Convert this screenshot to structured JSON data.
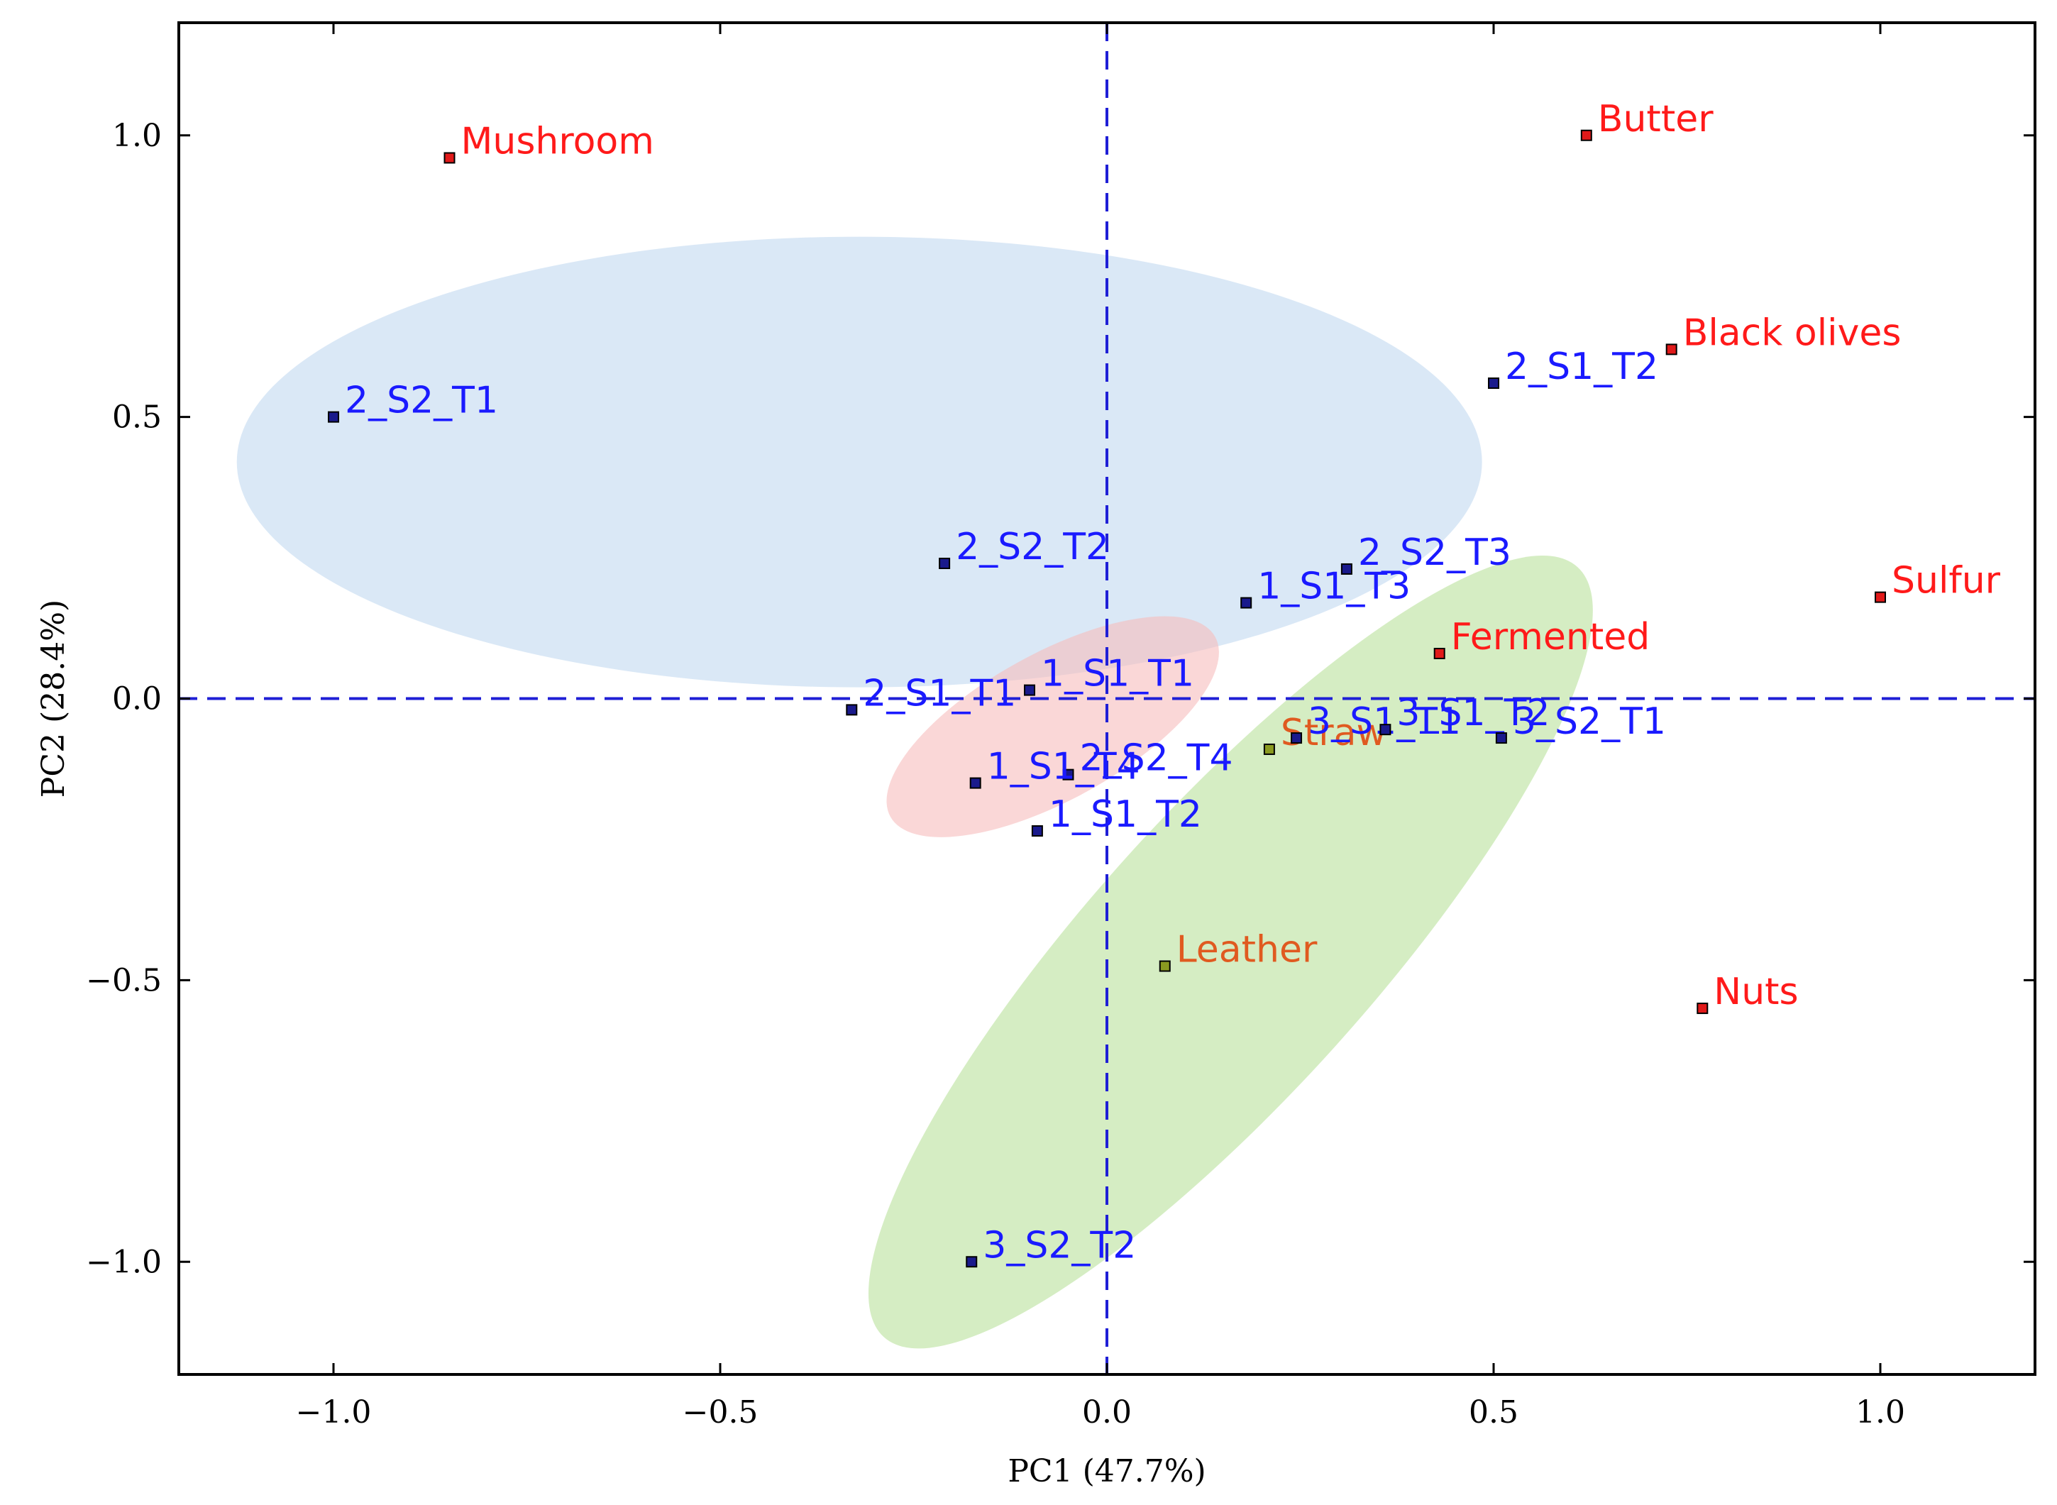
{
  "chart_data": {
    "type": "scatter",
    "title": "",
    "xlabel": "PC1 (47.7%)",
    "ylabel": "PC2 (28.4%)",
    "xlim": [
      -1.2,
      1.2
    ],
    "ylim": [
      -1.2,
      1.2
    ],
    "xticks": [
      -1.0,
      -0.5,
      0.0,
      0.5,
      1.0
    ],
    "yticks": [
      -1.0,
      -0.5,
      0.0,
      0.5,
      1.0
    ],
    "xtick_labels": [
      "−1.0",
      "−0.5",
      "0.0",
      "0.5",
      "1.0"
    ],
    "ytick_labels": [
      "−1.0",
      "−0.5",
      "0.0",
      "0.5",
      "1.0"
    ],
    "grid": false,
    "reference_lines": {
      "x": 0,
      "y": 0,
      "style": "dashed",
      "color": "#1f1fd6"
    },
    "ellipses": [
      {
        "name": "blue-group",
        "cx": -0.32,
        "cy": 0.42,
        "rx": 0.805,
        "ry": 0.4,
        "angle_deg": 0,
        "color": "#bcd6ee",
        "opacity": 0.55
      },
      {
        "name": "red-group",
        "cx": -0.07,
        "cy": -0.05,
        "rx": 0.24,
        "ry": 0.13,
        "angle_deg": 29,
        "color": "#f7bcbc",
        "opacity": 0.6
      },
      {
        "name": "green-group",
        "cx": 0.16,
        "cy": -0.45,
        "rx": 0.67,
        "ry": 0.25,
        "angle_deg": 48,
        "color": "#bfe3a3",
        "opacity": 0.65
      }
    ],
    "series": [
      {
        "name": "attributes",
        "text_color": "#ff1a1a",
        "marker_color": "#e11a1a",
        "points": [
          {
            "label": "Mushroom",
            "x": -0.85,
            "y": 0.96
          },
          {
            "label": "Butter",
            "x": 0.62,
            "y": 1.0
          },
          {
            "label": "Black olives",
            "x": 0.73,
            "y": 0.62
          },
          {
            "label": "Sulfur",
            "x": 1.0,
            "y": 0.18
          },
          {
            "label": "Fermented",
            "x": 0.43,
            "y": 0.08
          },
          {
            "label": "Nuts",
            "x": 0.77,
            "y": -0.55
          }
        ]
      },
      {
        "name": "attributes-in-group",
        "text_color": "#e05a20",
        "marker_color": "#8a9a20",
        "points": [
          {
            "label": "Straw",
            "x": 0.21,
            "y": -0.09
          },
          {
            "label": "Leather",
            "x": 0.075,
            "y": -0.475
          }
        ]
      },
      {
        "name": "samples",
        "text_color": "#1a1aff",
        "marker_color": "#1a1a8c",
        "points": [
          {
            "label": "2_S2_T1",
            "x": -1.0,
            "y": 0.5
          },
          {
            "label": "2_S1_T2",
            "x": 0.5,
            "y": 0.56
          },
          {
            "label": "2_S2_T2",
            "x": -0.21,
            "y": 0.24
          },
          {
            "label": "2_S2_T3",
            "x": 0.31,
            "y": 0.23
          },
          {
            "label": "1_S1_T3",
            "x": 0.18,
            "y": 0.17
          },
          {
            "label": "2_S1_T1",
            "x": -0.33,
            "y": -0.02
          },
          {
            "label": "1_S1_T1",
            "x": -0.1,
            "y": 0.015
          },
          {
            "label": "3_S1_T1",
            "x": 0.245,
            "y": -0.07
          },
          {
            "label": "3_S1_T2",
            "x": 0.36,
            "y": -0.055
          },
          {
            "label": "3_S2_T1",
            "x": 0.51,
            "y": -0.07
          },
          {
            "label": "2_S2_T4",
            "x": -0.05,
            "y": -0.135
          },
          {
            "label": "1_S1_T4",
            "x": -0.17,
            "y": -0.15
          },
          {
            "label": "1_S1_T2",
            "x": -0.09,
            "y": -0.235
          },
          {
            "label": "3_S2_T2",
            "x": -0.175,
            "y": -1.0
          }
        ]
      }
    ]
  }
}
